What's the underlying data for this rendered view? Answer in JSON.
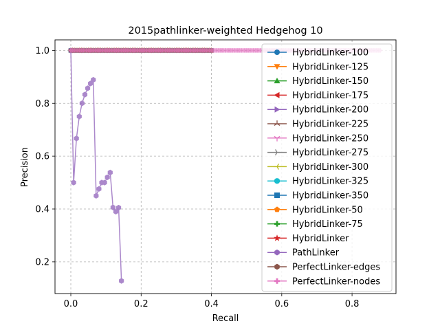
{
  "chart_data": {
    "type": "line",
    "title": "2015pathlinker-weighted Hedgehog 10",
    "xlabel": "Recall",
    "ylabel": "Precision",
    "xlim": [
      -0.045,
      0.925
    ],
    "ylim": [
      0.08,
      1.04
    ],
    "x_ticks": [
      0.0,
      0.2,
      0.4,
      0.6,
      0.8
    ],
    "x_tick_labels": [
      "0.0",
      "0.2",
      "0.4",
      "0.6",
      "0.8"
    ],
    "y_ticks": [
      0.2,
      0.4,
      0.6,
      0.8,
      1.0
    ],
    "y_tick_labels": [
      "0.2",
      "0.4",
      "0.6",
      "0.8",
      "1.0"
    ],
    "grid": true,
    "legend_position": "upper-right",
    "series": [
      {
        "name": "HybridLinker-100",
        "color": "#1f77b4",
        "marker": "circle",
        "x": [
          0.0,
          0.4
        ],
        "y": [
          1.0,
          1.0
        ]
      },
      {
        "name": "HybridLinker-125",
        "color": "#ff7f0e",
        "marker": "triangle-down",
        "x": [
          0.0,
          0.4
        ],
        "y": [
          1.0,
          1.0
        ]
      },
      {
        "name": "HybridLinker-150",
        "color": "#2ca02c",
        "marker": "triangle-up",
        "x": [
          0.0,
          0.4
        ],
        "y": [
          1.0,
          1.0
        ]
      },
      {
        "name": "HybridLinker-175",
        "color": "#d62728",
        "marker": "triangle-left",
        "x": [
          0.0,
          0.4
        ],
        "y": [
          1.0,
          1.0
        ]
      },
      {
        "name": "HybridLinker-200",
        "color": "#9467bd",
        "marker": "triangle-right",
        "x": [
          0.0,
          0.4
        ],
        "y": [
          1.0,
          1.0
        ]
      },
      {
        "name": "HybridLinker-225",
        "color": "#8c564b",
        "marker": "tri-down",
        "x": [
          0.0,
          0.4
        ],
        "y": [
          1.0,
          1.0
        ]
      },
      {
        "name": "HybridLinker-250",
        "color": "#e377c2",
        "marker": "tri-up",
        "x": [
          0.0,
          0.4
        ],
        "y": [
          1.0,
          1.0
        ]
      },
      {
        "name": "HybridLinker-275",
        "color": "#7f7f7f",
        "marker": "tri-left",
        "x": [
          0.0,
          0.4
        ],
        "y": [
          1.0,
          1.0
        ]
      },
      {
        "name": "HybridLinker-300",
        "color": "#bcbd22",
        "marker": "tri-right",
        "x": [
          0.0,
          0.4
        ],
        "y": [
          1.0,
          1.0
        ]
      },
      {
        "name": "HybridLinker-325",
        "color": "#17becf",
        "marker": "octagon",
        "x": [
          0.0,
          0.4
        ],
        "y": [
          1.0,
          1.0
        ]
      },
      {
        "name": "HybridLinker-350",
        "color": "#1f77b4",
        "marker": "square",
        "x": [
          0.0,
          0.4
        ],
        "y": [
          1.0,
          1.0
        ]
      },
      {
        "name": "HybridLinker-50",
        "color": "#ff7f0e",
        "marker": "pentagon",
        "x": [
          0.0,
          0.4
        ],
        "y": [
          1.0,
          1.0
        ]
      },
      {
        "name": "HybridLinker-75",
        "color": "#2ca02c",
        "marker": "plus",
        "x": [
          0.0,
          0.4
        ],
        "y": [
          1.0,
          1.0
        ]
      },
      {
        "name": "HybridLinker",
        "color": "#d62728",
        "marker": "star",
        "x": [
          0.0,
          0.4
        ],
        "y": [
          1.0,
          1.0
        ]
      },
      {
        "name": "PathLinker",
        "color": "#9467bd",
        "marker": "hexagon",
        "x": [
          0.0,
          0.008,
          0.016,
          0.024,
          0.032,
          0.04,
          0.048,
          0.056,
          0.064,
          0.072,
          0.08,
          0.088,
          0.096,
          0.104,
          0.112,
          0.12,
          0.128,
          0.136,
          0.144
        ],
        "y": [
          1.0,
          0.5,
          0.667,
          0.75,
          0.8,
          0.833,
          0.857,
          0.875,
          0.889,
          0.45,
          0.476,
          0.5,
          0.5,
          0.52,
          0.538,
          0.406,
          0.39,
          0.405,
          0.128
        ]
      },
      {
        "name": "PerfectLinker-edges",
        "color": "#8c564b",
        "marker": "hexagon",
        "x": [
          0.0,
          0.4
        ],
        "y": [
          1.0,
          1.0
        ]
      },
      {
        "name": "PerfectLinker-nodes",
        "color": "#e377c2",
        "marker": "plus",
        "x": [
          0.0,
          0.88
        ],
        "y": [
          1.0,
          1.0
        ]
      }
    ]
  }
}
